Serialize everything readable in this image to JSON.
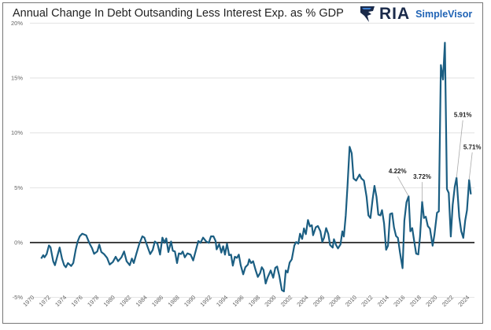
{
  "brand": {
    "name": "RIA",
    "product": "SimpleVisor"
  },
  "chart_data": {
    "type": "line",
    "title": "Annual Change In Debt Outsanding Less Interest Exp. as % GDP",
    "xlabel": "",
    "ylabel": "",
    "xlim": [
      1970,
      2024
    ],
    "ylim": [
      -5,
      20
    ],
    "yticks": [
      "-5%",
      "0%",
      "5%",
      "10%",
      "15%",
      "20%"
    ],
    "ytick_values": [
      -5,
      0,
      5,
      10,
      15,
      20
    ],
    "xticks": [
      "1970",
      "1972",
      "1974",
      "1976",
      "1978",
      "1980",
      "1982",
      "1984",
      "1986",
      "1988",
      "1990",
      "1992",
      "1994",
      "1996",
      "1998",
      "2000",
      "2002",
      "2004",
      "2006",
      "2008",
      "2010",
      "2012",
      "2014",
      "2016",
      "2018",
      "2020",
      "2022",
      "2024"
    ],
    "grid": true,
    "line_color": "#1b5e82",
    "series": [
      {
        "x": [
          1970.81,
          1971.07,
          1971.23,
          1971.49,
          1971.78,
          1971.97,
          1972.3,
          1972.52,
          1972.78,
          1973.11,
          1973.4,
          1973.66,
          1973.88,
          1974.14,
          1974.53,
          1974.79,
          1975.11,
          1975.34,
          1975.6,
          1975.92,
          1976.41,
          1976.83,
          1977.12,
          1977.38,
          1977.77,
          1978.03,
          1978.28,
          1978.61,
          1979.0,
          1979.32,
          1979.71,
          1980.06,
          1980.36,
          1980.78,
          1981.1,
          1981.42,
          1981.81,
          1982.07,
          1982.3,
          1982.62,
          1982.98,
          1983.37,
          1983.62,
          1984.01,
          1984.34,
          1984.66,
          1984.92,
          1985.24,
          1985.57,
          1985.86,
          1986.12,
          1986.34,
          1986.6,
          1986.93,
          1987.15,
          1987.41,
          1987.67,
          1987.9,
          1988.16,
          1988.38,
          1988.64,
          1988.96,
          1989.35,
          1989.68,
          1990.0,
          1990.32,
          1990.58,
          1990.91,
          1991.29,
          1991.62,
          1991.88,
          1992.2,
          1992.46,
          1992.59,
          1992.91,
          1993.17,
          1993.4,
          1993.62,
          1993.88,
          1994.14,
          1994.37,
          1994.6,
          1994.85,
          1995.11,
          1995.34,
          1995.57,
          1995.89,
          1996.15,
          1996.47,
          1996.63,
          1996.86,
          1997.12,
          1997.44,
          1997.7,
          1997.99,
          1998.19,
          1998.41,
          1998.67,
          1998.9,
          1999.29,
          1999.61,
          1999.87,
          2000.1,
          2000.36,
          2000.68,
          2000.94,
          2001.17,
          2001.39,
          2001.65,
          2001.91,
          2002.23,
          2002.46,
          2002.72,
          2002.94,
          2003.2,
          2003.43,
          2003.66,
          2003.92,
          2004.17,
          2004.4,
          2004.56,
          2004.89,
          2005.15,
          2005.47,
          2005.7,
          2005.92,
          2006.18,
          2006.44,
          2006.67,
          2006.99,
          2007.15,
          2007.41,
          2007.64,
          2007.96,
          2008.19,
          2008.38,
          2008.61,
          2008.83,
          2009.09,
          2009.35,
          2009.58,
          2009.9,
          2010.32,
          2010.55,
          2010.87,
          2011.2,
          2011.42,
          2011.68,
          2011.94,
          2012.17,
          2012.43,
          2012.65,
          2012.91,
          2013.11,
          2013.37,
          2013.62,
          2013.85,
          2014.11,
          2014.37,
          2014.6,
          2014.85,
          2015.08,
          2015.34,
          2015.66,
          2015.89,
          2016.15,
          2016.41,
          2016.63,
          2016.86,
          2017.12,
          2017.35,
          2017.61,
          2017.83,
          2018.09,
          2018.32,
          2018.54,
          2018.8,
          2019.06,
          2019.39,
          2019.61,
          2019.94,
          2020.16,
          2020.42,
          2020.68,
          2020.91,
          2021.17,
          2021.39,
          2021.65,
          2021.88,
          2022.14,
          2022.36,
          2022.69,
          2022.95,
          2023.2,
          2023.43,
          2023.66,
          2023.92,
          2024.14
        ],
        "y": [
          -1.46,
          -1.15,
          -1.34,
          -1.05,
          -0.26,
          -0.43,
          -1.7,
          -2.06,
          -1.34,
          -0.45,
          -1.46,
          -2.06,
          -2.25,
          -1.87,
          -2.13,
          -1.87,
          -0.62,
          0.1,
          0.57,
          0.81,
          0.65,
          -0.1,
          -0.5,
          -1.03,
          -0.81,
          -0.19,
          -0.86,
          -1.05,
          -1.41,
          -2.0,
          -1.77,
          -1.29,
          -1.7,
          -1.34,
          -0.81,
          -1.7,
          -2.06,
          -1.46,
          -1.87,
          -1.05,
          -0.14,
          0.57,
          0.45,
          -0.38,
          -1.05,
          -0.67,
          0.1,
          -0.1,
          -1.1,
          0.45,
          -0.02,
          0.38,
          -0.86,
          0.1,
          -0.74,
          -0.81,
          -1.87,
          -0.98,
          -1.05,
          -0.81,
          -1.34,
          -0.98,
          -1.1,
          -1.63,
          -0.74,
          0.14,
          -0.02,
          0.45,
          0.1,
          -0.02,
          0.57,
          0.57,
          0.14,
          -0.62,
          -0.14,
          -0.91,
          -0.33,
          -1.1,
          -0.1,
          -1.15,
          -1.1,
          -2.1,
          -1.29,
          -1.39,
          -1.1,
          -2.06,
          -2.89,
          -2.25,
          -2.0,
          -1.53,
          -1.87,
          -1.7,
          -2.54,
          -3.13,
          -2.78,
          -2.25,
          -2.49,
          -3.73,
          -3.2,
          -2.54,
          -3.2,
          -2.3,
          -2.18,
          -3.01,
          -4.33,
          -4.45,
          -2.54,
          -2.73,
          -1.82,
          -1.53,
          -0.26,
          0.05,
          -0.1,
          0.81,
          0.33,
          1.29,
          0.77,
          2.06,
          1.48,
          1.58,
          0.67,
          1.39,
          1.51,
          1.03,
          0.07,
          0.43,
          1.32,
          0.79,
          -0.22,
          -0.46,
          0.31,
          -0.22,
          -0.53,
          -0.17,
          1.03,
          0.55,
          2.48,
          5.12,
          8.73,
          8.13,
          5.84,
          5.65,
          6.2,
          5.84,
          5.65,
          4.16,
          2.48,
          2.24,
          3.92,
          5.17,
          4.16,
          2.55,
          2.48,
          2.96,
          1.75,
          -0.65,
          -0.29,
          2.6,
          2.67,
          1.39,
          0.6,
          0.43,
          -0.89,
          -2.33,
          2.0,
          3.68,
          4.22,
          1.03,
          1.32,
          0.07,
          -1.01,
          -1.08,
          0.55,
          3.72,
          2.24,
          2.36,
          1.51,
          1.27,
          -0.29,
          0.67,
          2.72,
          2.84,
          16.18,
          14.86,
          18.22,
          4.88,
          4.52,
          0.55,
          3.44,
          5.12,
          5.91,
          2.36,
          1.03,
          0.43,
          2.0,
          2.96,
          5.71,
          4.4
        ]
      }
    ],
    "annotations": [
      {
        "text": "4.22%",
        "x": 2016.41,
        "y": 4.22
      },
      {
        "text": "3.72%",
        "x": 2018.09,
        "y": 3.72
      },
      {
        "text": "5.91%",
        "x": 2022.36,
        "y": 5.91
      },
      {
        "text": "5.71%",
        "x": 2023.92,
        "y": 5.71
      }
    ]
  }
}
